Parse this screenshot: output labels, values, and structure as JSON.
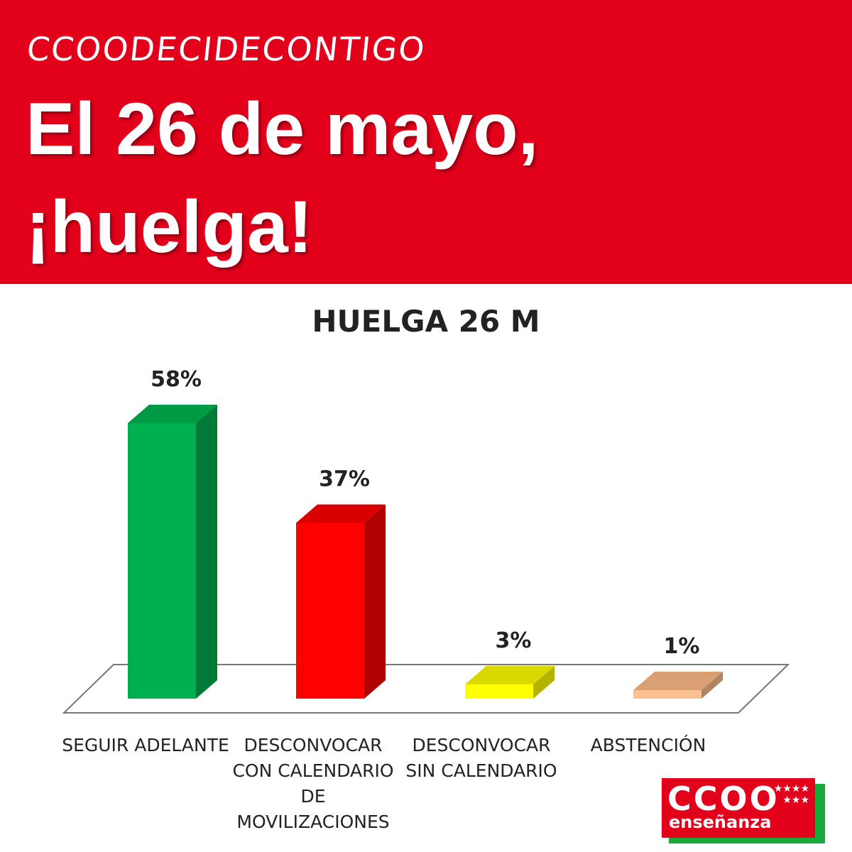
{
  "banner": {
    "hashtag": "CCOODECIDECONTIGO",
    "headline_line1": "El 26 de mayo,",
    "headline_line2": "¡huelga!"
  },
  "chart_data": {
    "type": "bar",
    "title": "HUELGA 26 M",
    "categories": [
      "SEGUIR ADELANTE",
      "DESCONVOCAR CON CALENDARIO DE MOVILIZACIONES",
      "DESCONVOCAR SIN CALENDARIO",
      "ABSTENCIÓN"
    ],
    "category_lines": [
      [
        "SEGUIR ADELANTE"
      ],
      [
        "DESCONVOCAR",
        "CON CALENDARIO",
        "DE",
        "MOVILIZACIONES"
      ],
      [
        "DESCONVOCAR",
        "SIN CALENDARIO"
      ],
      [
        "ABSTENCIÓN"
      ]
    ],
    "values": [
      58,
      37,
      3,
      1
    ],
    "value_labels": [
      "58%",
      "37%",
      "3%",
      "1%"
    ],
    "ylim": [
      0,
      58
    ],
    "grid": false,
    "style": "3d",
    "colors": {
      "front": [
        "#00b050",
        "#ff0000",
        "#ffff00",
        "#fac090"
      ],
      "side": [
        "#007a37",
        "#b00000",
        "#b3b300",
        "#b08662"
      ],
      "top": [
        "#009944",
        "#d80000",
        "#d9d900",
        "#d9a073"
      ]
    }
  },
  "logo": {
    "name": "CCOO",
    "sub": "enseñanza",
    "colors": {
      "primary": "#e2001a",
      "accent": "#1aa83a"
    }
  }
}
